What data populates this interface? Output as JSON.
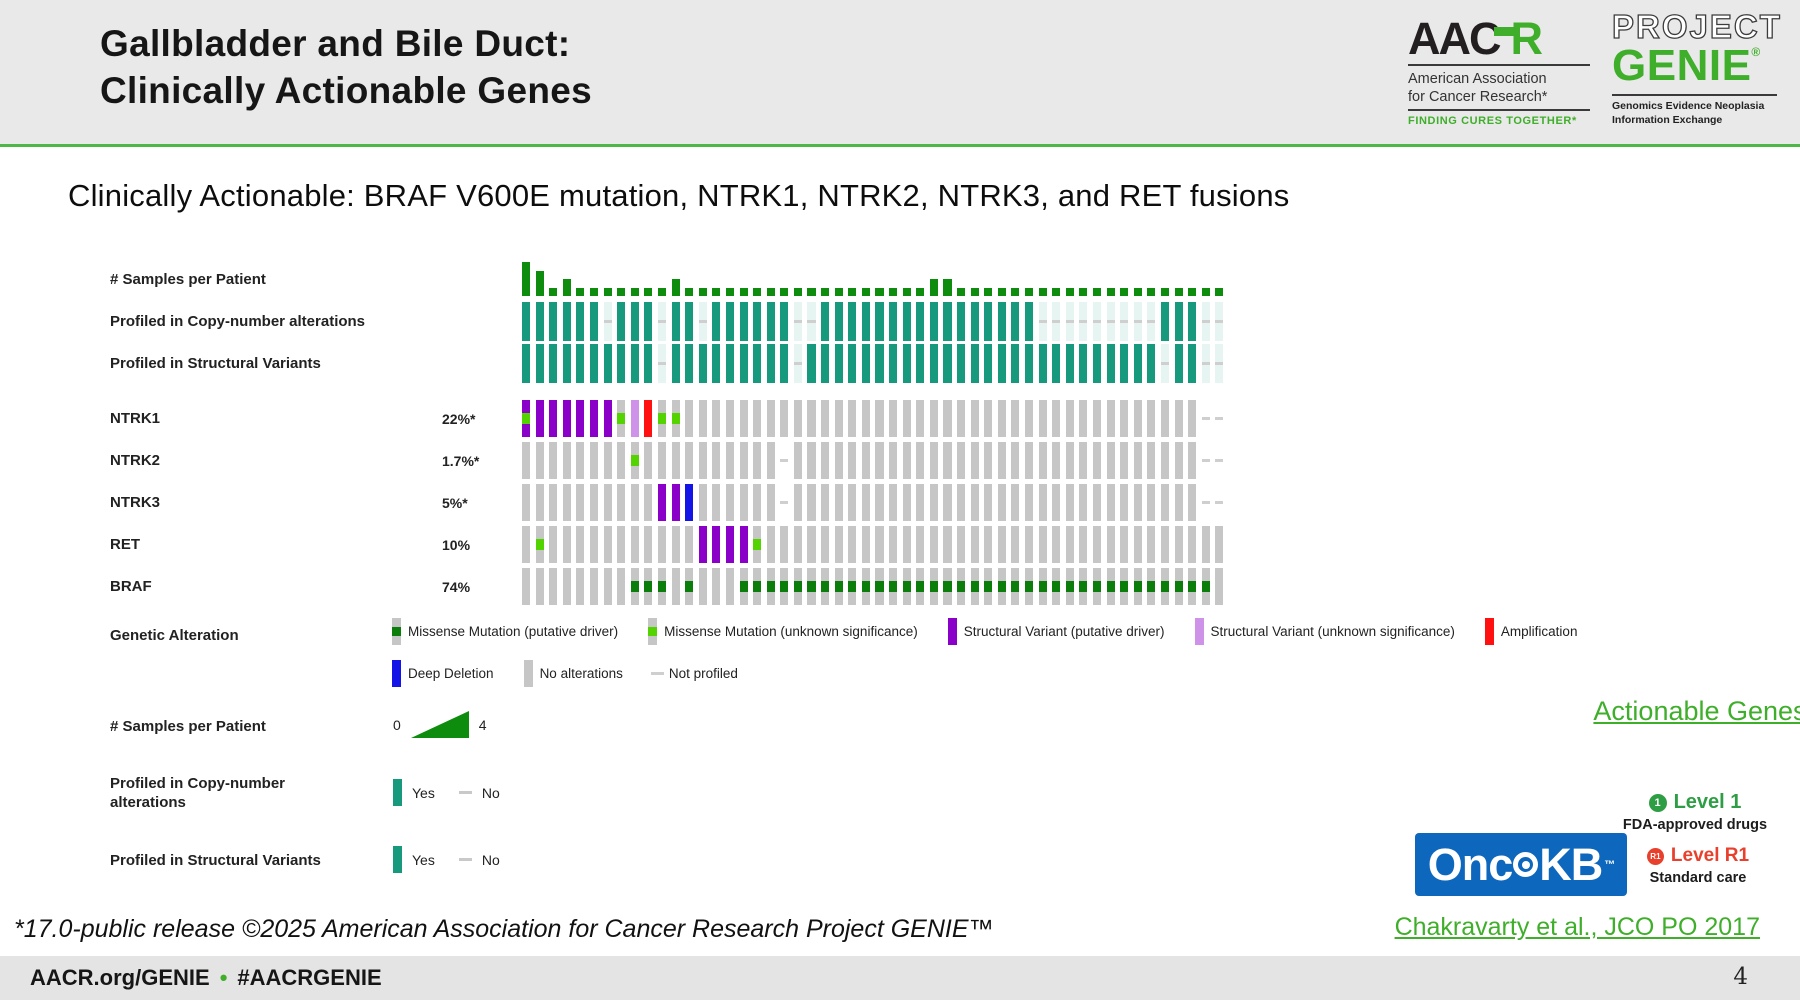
{
  "header": {
    "title": "Gallbladder and Bile Duct:\nClinically Actionable Genes",
    "aacr_logo": {
      "acronym_black": "AAC",
      "acronym_green": "R",
      "line1": "American Association",
      "line2": "for Cancer Research*",
      "tagline": "FINDING CURES TOGETHER*"
    },
    "genie_logo": {
      "project": "PROJECT",
      "genie": "GENIE",
      "reg": "®",
      "sub": "Genomics Evidence Neoplasia\nInformation Exchange"
    }
  },
  "subtitle": "Clinically Actionable: BRAF V600E mutation, NTRK1, NTRK2, NTRK3, and RET fusions",
  "chart_data": {
    "type": "heatmap",
    "subtype": "oncoprint",
    "n_columns": 52,
    "colors": {
      "sample_bar": "#0e8c0e",
      "profiled_yes": "#16997c",
      "no_alteration": "#c6c6c6",
      "missense_driver": "#0b7d0b",
      "missense_vus": "#53d400",
      "sv_driver": "#8b00c9",
      "sv_vus": "#ce92e8",
      "amplification": "#ff1111",
      "deep_deletion": "#1414e6",
      "not_profiled_dash": "#cfcfcf"
    },
    "clinical_tracks": [
      {
        "key": "samples",
        "label": "# Samples per Patient",
        "type": "bar",
        "max": 4,
        "values": [
          4,
          3,
          1,
          2,
          1,
          1,
          1,
          1,
          1,
          1,
          1,
          2,
          1,
          1,
          1,
          1,
          1,
          1,
          1,
          1,
          1,
          1,
          1,
          1,
          1,
          1,
          1,
          1,
          1,
          1,
          2,
          2,
          1,
          1,
          1,
          1,
          1,
          1,
          1,
          1,
          1,
          1,
          1,
          1,
          1,
          1,
          1,
          1,
          1,
          1,
          1,
          1
        ]
      },
      {
        "key": "cna",
        "label": "Profiled in Copy-number alterations",
        "type": "yesno",
        "values": [
          "Y",
          "Y",
          "Y",
          "Y",
          "Y",
          "Y",
          "N",
          "Y",
          "Y",
          "Y",
          "N",
          "Y",
          "Y",
          "N",
          "Y",
          "Y",
          "Y",
          "Y",
          "Y",
          "Y",
          "N",
          "N",
          "Y",
          "Y",
          "Y",
          "Y",
          "Y",
          "Y",
          "Y",
          "Y",
          "Y",
          "Y",
          "Y",
          "Y",
          "Y",
          "Y",
          "Y",
          "Y",
          "N",
          "N",
          "N",
          "N",
          "N",
          "N",
          "N",
          "N",
          "N",
          "Y",
          "Y",
          "Y",
          "N",
          "N"
        ]
      },
      {
        "key": "svp",
        "label": "Profiled in Structural Variants",
        "type": "yesno",
        "values": [
          "Y",
          "Y",
          "Y",
          "Y",
          "Y",
          "Y",
          "Y",
          "Y",
          "Y",
          "Y",
          "N",
          "Y",
          "Y",
          "Y",
          "Y",
          "Y",
          "Y",
          "Y",
          "Y",
          "Y",
          "N",
          "Y",
          "Y",
          "Y",
          "Y",
          "Y",
          "Y",
          "Y",
          "Y",
          "Y",
          "Y",
          "Y",
          "Y",
          "Y",
          "Y",
          "Y",
          "Y",
          "Y",
          "Y",
          "Y",
          "Y",
          "Y",
          "Y",
          "Y",
          "Y",
          "Y",
          "Y",
          "N",
          "Y",
          "Y",
          "N",
          "N"
        ]
      }
    ],
    "gene_tracks": [
      {
        "gene": "NTRK1",
        "pct": "22%*",
        "cells": [
          "sd+mv",
          "sd",
          "sd",
          "sd",
          "sd",
          "sd",
          "sd",
          "mv",
          "sv",
          "amp",
          "mv",
          "mv",
          "0",
          "0",
          "0",
          "0",
          "0",
          "0",
          "0",
          "0",
          "0",
          "0",
          "0",
          "0",
          "0",
          "0",
          "0",
          "0",
          "0",
          "0",
          "0",
          "0",
          "0",
          "0",
          "0",
          "0",
          "0",
          "0",
          "0",
          "0",
          "0",
          "0",
          "0",
          "0",
          "0",
          "0",
          "0",
          "0",
          "0",
          "0",
          "np",
          "np"
        ]
      },
      {
        "gene": "NTRK2",
        "pct": "1.7%*",
        "cells": [
          "0",
          "0",
          "0",
          "0",
          "0",
          "0",
          "0",
          "0",
          "mv",
          "0",
          "0",
          "0",
          "0",
          "0",
          "0",
          "0",
          "0",
          "0",
          "0",
          "np",
          "0",
          "0",
          "0",
          "0",
          "0",
          "0",
          "0",
          "0",
          "0",
          "0",
          "0",
          "0",
          "0",
          "0",
          "0",
          "0",
          "0",
          "0",
          "0",
          "0",
          "0",
          "0",
          "0",
          "0",
          "0",
          "0",
          "0",
          "0",
          "0",
          "0",
          "np",
          "np"
        ]
      },
      {
        "gene": "NTRK3",
        "pct": "5%*",
        "cells": [
          "0",
          "0",
          "0",
          "0",
          "0",
          "0",
          "0",
          "0",
          "0",
          "0",
          "sd",
          "sd",
          "dd",
          "0",
          "0",
          "0",
          "0",
          "0",
          "0",
          "np",
          "0",
          "0",
          "0",
          "0",
          "0",
          "0",
          "0",
          "0",
          "0",
          "0",
          "0",
          "0",
          "0",
          "0",
          "0",
          "0",
          "0",
          "0",
          "0",
          "0",
          "0",
          "0",
          "0",
          "0",
          "0",
          "0",
          "0",
          "0",
          "0",
          "0",
          "np",
          "np"
        ]
      },
      {
        "gene": "RET",
        "pct": "10%",
        "cells": [
          "0",
          "mv",
          "0",
          "0",
          "0",
          "0",
          "0",
          "0",
          "0",
          "0",
          "0",
          "0",
          "0",
          "sd",
          "sd",
          "sd",
          "sd",
          "mv",
          "0",
          "0",
          "0",
          "0",
          "0",
          "0",
          "0",
          "0",
          "0",
          "0",
          "0",
          "0",
          "0",
          "0",
          "0",
          "0",
          "0",
          "0",
          "0",
          "0",
          "0",
          "0",
          "0",
          "0",
          "0",
          "0",
          "0",
          "0",
          "0",
          "0",
          "0",
          "0",
          "0",
          "0"
        ]
      },
      {
        "gene": "BRAF",
        "pct": "74%",
        "cells": [
          "0",
          "0",
          "0",
          "0",
          "0",
          "0",
          "0",
          "0",
          "md",
          "md",
          "md",
          "0",
          "md",
          "0",
          "0",
          "0",
          "md",
          "md",
          "md",
          "md",
          "md",
          "md",
          "md",
          "md",
          "md",
          "md",
          "md",
          "md",
          "md",
          "md",
          "md",
          "md",
          "md",
          "md",
          "md",
          "md",
          "md",
          "md",
          "md",
          "md",
          "md",
          "md",
          "md",
          "md",
          "md",
          "md",
          "md",
          "md",
          "md",
          "md",
          "md",
          "0"
        ]
      }
    ],
    "alteration_legend": {
      "title": "Genetic Alteration",
      "row1": [
        {
          "swatch": "md",
          "label": "Missense Mutation (putative driver)"
        },
        {
          "swatch": "mv",
          "label": "Missense Mutation (unknown significance)"
        },
        {
          "swatch": "sd",
          "label": "Structural Variant (putative driver)"
        },
        {
          "swatch": "sv",
          "label": "Structural Variant (unknown significance)"
        },
        {
          "swatch": "amp",
          "label": "Amplification"
        }
      ],
      "row2": [
        {
          "swatch": "dd",
          "label": "Deep Deletion"
        },
        {
          "swatch": "none",
          "label": "No alterations"
        },
        {
          "swatch": "np",
          "label": "Not profiled"
        }
      ]
    },
    "samples_legend": {
      "label": "# Samples per Patient",
      "min": "0",
      "max": "4"
    },
    "cna_legend": {
      "label": "Profiled in Copy-number\nalterations",
      "yes": "Yes",
      "no": "No"
    },
    "sv_legend": {
      "label": "Profiled in Structural Variants",
      "yes": "Yes",
      "no": "No"
    }
  },
  "right_panel": {
    "actionable_link": "Actionable Genes",
    "oncokb": {
      "part1": "Onc",
      "part2": "KB",
      "tm": "™"
    },
    "level1": {
      "badge": "1",
      "label": "Level 1",
      "desc": "FDA-approved drugs"
    },
    "level_r1": {
      "badge": "R1",
      "label": "Level R1",
      "desc": "Standard care"
    },
    "citation": "Chakravarty et al., JCO PO 2017"
  },
  "footer": {
    "note": "*17.0-public release ©2025 American Association for Cancer Research Project GENIE™",
    "bar_text1": "AACR.org/GENIE",
    "bar_bullet": "•",
    "bar_text2": "#AACRGENIE",
    "page_number": "4"
  }
}
